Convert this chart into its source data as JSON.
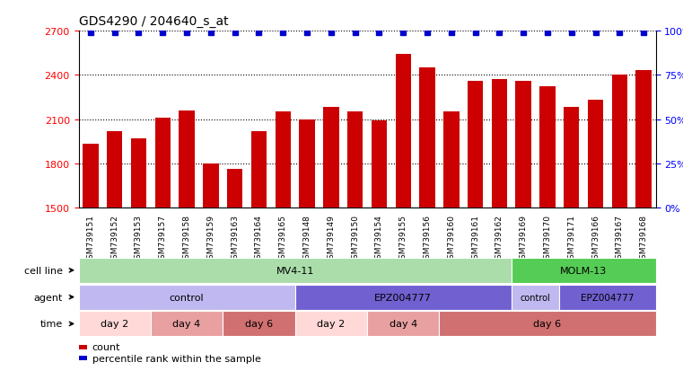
{
  "title": "GDS4290 / 204640_s_at",
  "samples": [
    "GSM739151",
    "GSM739152",
    "GSM739153",
    "GSM739157",
    "GSM739158",
    "GSM739159",
    "GSM739163",
    "GSM739164",
    "GSM739165",
    "GSM739148",
    "GSM739149",
    "GSM739150",
    "GSM739154",
    "GSM739155",
    "GSM739156",
    "GSM739160",
    "GSM739161",
    "GSM739162",
    "GSM739169",
    "GSM739170",
    "GSM739171",
    "GSM739166",
    "GSM739167",
    "GSM739168"
  ],
  "counts": [
    1930,
    2020,
    1970,
    2110,
    2160,
    1800,
    1760,
    2020,
    2150,
    2100,
    2180,
    2150,
    2090,
    2540,
    2450,
    2150,
    2360,
    2370,
    2360,
    2320,
    2180,
    2230,
    2400,
    2430
  ],
  "bar_color": "#cc0000",
  "dot_color": "#0000cc",
  "ylim_left": [
    1500,
    2700
  ],
  "yticks_left": [
    1500,
    1800,
    2100,
    2400,
    2700
  ],
  "ylim_right": [
    0,
    100
  ],
  "yticks_right": [
    0,
    25,
    50,
    75,
    100
  ],
  "color_mv411": "#aaddaa",
  "color_molm13": "#55cc55",
  "color_control": "#c0b8f0",
  "color_epz": "#7060d0",
  "color_day2": "#ffd8d8",
  "color_day4": "#e8a0a0",
  "color_day6": "#d07070",
  "background_color": "#ffffff"
}
